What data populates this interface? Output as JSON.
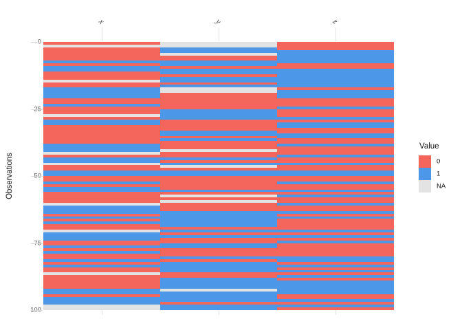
{
  "figure": {
    "ylabel": "Observations",
    "colors": {
      "value_0": "#F4655C",
      "value_1": "#4D97E8",
      "value_NA": "#E3E3E3",
      "gridline": "#E3E3E3",
      "axis_text": "#5a5a5a",
      "label_text": "#4d4d4d"
    }
  },
  "chart_data": {
    "type": "heatmap",
    "title": "",
    "xlabel": "",
    "ylabel": "Observations",
    "columns": [
      "x",
      "y",
      "z"
    ],
    "y_axis_ticks": [
      0,
      25,
      50,
      75,
      100
    ],
    "n_observations": 100,
    "value_domain": [
      "0",
      "1",
      "NA"
    ],
    "legend": {
      "title": "Value",
      "entries": [
        {
          "label": "0",
          "color": "#F4655C"
        },
        {
          "label": "1",
          "color": "#4D97E8"
        },
        {
          "label": "NA",
          "color": "#E3E3E3"
        }
      ]
    },
    "series": {
      "x": [
        "0",
        "NA",
        "0",
        "0",
        "0",
        "0",
        "0",
        "1",
        "0",
        "1",
        "1",
        "0",
        "0",
        "0",
        "NA",
        "0",
        "0",
        "1",
        "1",
        "1",
        "1",
        "0",
        "0",
        "1",
        "0",
        "0",
        "0",
        "NA",
        "0",
        "1",
        "1",
        "0",
        "0",
        "0",
        "0",
        "0",
        "0",
        "0",
        "1",
        "1",
        "1",
        "NA",
        "0",
        "1",
        "1",
        "NA",
        "0",
        "0",
        "1",
        "1",
        "0",
        "0",
        "1",
        "0",
        "1",
        "1",
        "0",
        "0",
        "0",
        "0",
        "NA",
        "1",
        "1",
        "1",
        "0",
        "1",
        "0",
        "1",
        "0",
        "0",
        "NA",
        "1",
        "1",
        "1",
        "0",
        "0",
        "1",
        "0",
        "1",
        "0",
        "0",
        "1",
        "0",
        "1",
        "0",
        "0",
        "NA",
        "0",
        "0",
        "0",
        "0",
        "0",
        "1",
        "1",
        "0",
        "1",
        "1",
        "1",
        "NA",
        "NA"
      ],
      "y": [
        "NA",
        "NA",
        "1",
        "1",
        "NA",
        "0",
        "0",
        "1",
        "1",
        "0",
        "1",
        "1",
        "0",
        "1",
        "1",
        "0",
        "1",
        "NA",
        "NA",
        "0",
        "0",
        "0",
        "0",
        "0",
        "0",
        "1",
        "1",
        "1",
        "1",
        "0",
        "0",
        "0",
        "0",
        "1",
        "1",
        "0",
        "1",
        "0",
        "0",
        "0",
        "NA",
        "0",
        "0",
        "1",
        "0",
        "1",
        "NA",
        "0",
        "1",
        "1",
        "0",
        "0",
        "0",
        "0",
        "0",
        "1",
        "0",
        "NA",
        "0",
        "NA",
        "0",
        "0",
        "0",
        "1",
        "1",
        "1",
        "1",
        "1",
        "1",
        "0",
        "1",
        "0",
        "1",
        "0",
        "0",
        "1",
        "1",
        "0",
        "0",
        "0",
        "1",
        "0",
        "1",
        "1",
        "1",
        "1",
        "0",
        "0",
        "1",
        "1",
        "1",
        "1",
        "NA",
        "1",
        "1",
        "1",
        "1",
        "0",
        "1",
        "1"
      ],
      "z": [
        "0",
        "0",
        "0",
        "1",
        "1",
        "1",
        "1",
        "1",
        "0",
        "0",
        "1",
        "1",
        "1",
        "1",
        "1",
        "1",
        "1",
        "0",
        "1",
        "1",
        "1",
        "0",
        "0",
        "0",
        "1",
        "0",
        "0",
        "0",
        "1",
        "0",
        "1",
        "1",
        "0",
        "0",
        "1",
        "1",
        "0",
        "0",
        "1",
        "0",
        "0",
        "0",
        "1",
        "0",
        "0",
        "1",
        "0",
        "0",
        "1",
        "1",
        "0",
        "0",
        "1",
        "0",
        "0",
        "1",
        "0",
        "1",
        "0",
        "0",
        "1",
        "0",
        "0",
        "1",
        "0",
        "1",
        "0",
        "0",
        "0",
        "0",
        "1",
        "0",
        "1",
        "0",
        "1",
        "0",
        "0",
        "0",
        "0",
        "0",
        "1",
        "1",
        "0",
        "1",
        "0",
        "1",
        "0",
        "1",
        "0",
        "1",
        "1",
        "1",
        "1",
        "1",
        "0",
        "0",
        "1",
        "0",
        "1",
        "0"
      ]
    }
  }
}
